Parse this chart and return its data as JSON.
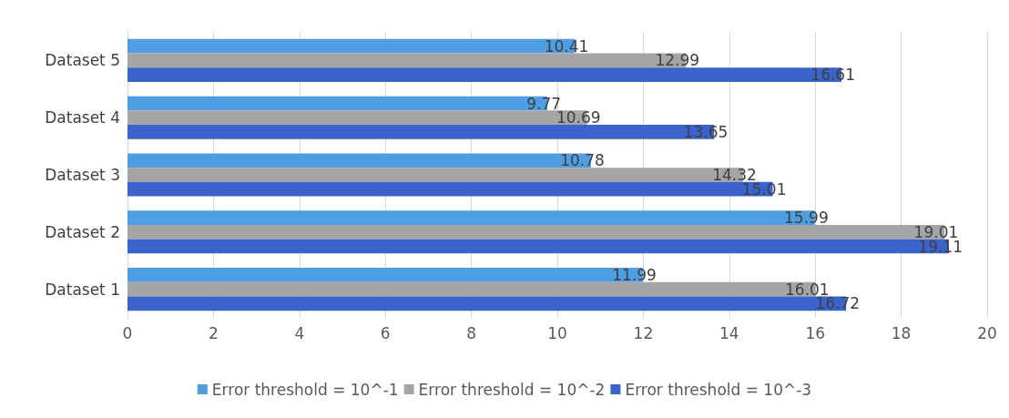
{
  "chart_data": {
    "type": "bar",
    "orientation": "horizontal",
    "categories": [
      "Dataset 5",
      "Dataset 4",
      "Dataset 3",
      "Dataset 2",
      "Dataset 1"
    ],
    "series": [
      {
        "name": "Error threshold = 10^-1",
        "color": "#4f9ee3",
        "values": [
          10.41,
          9.77,
          10.78,
          15.99,
          11.99
        ]
      },
      {
        "name": "Error threshold = 10^-2",
        "color": "#a5a5a5",
        "values": [
          12.99,
          10.69,
          14.32,
          19.01,
          16.01
        ]
      },
      {
        "name": "Error threshold = 10^-3",
        "color": "#3a63cc",
        "values": [
          16.61,
          13.65,
          15.01,
          19.11,
          16.72
        ]
      }
    ],
    "xlim": [
      0,
      20
    ],
    "xticks": [
      0,
      2,
      4,
      6,
      8,
      10,
      12,
      14,
      16,
      18,
      20
    ],
    "grid": "x",
    "legend": "bottom",
    "data_labels": true
  }
}
